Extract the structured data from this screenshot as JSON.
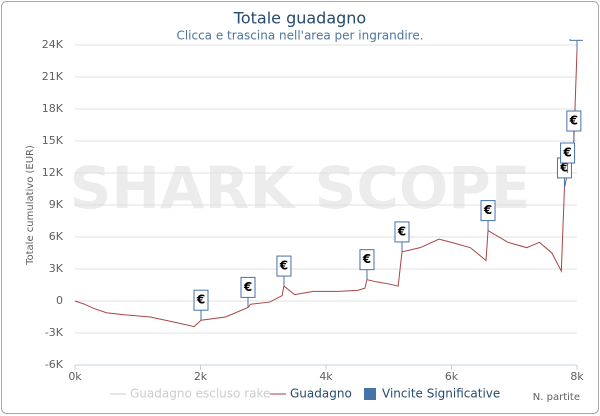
{
  "chart_data": {
    "type": "line",
    "title": "Totale guadagno",
    "subtitle": "Clicca e trascina nell'area per ingrandire.",
    "watermark": "SHARK SCOPE",
    "y_label": "Totale cumulativo (EUR)",
    "x_label": "N. partite",
    "xlim": [
      0,
      8000
    ],
    "ylim": [
      -6000,
      24000
    ],
    "xticks": [
      {
        "value": 0,
        "label": "0k"
      },
      {
        "value": 2000,
        "label": "2k"
      },
      {
        "value": 4000,
        "label": "4k"
      },
      {
        "value": 6000,
        "label": "6k"
      },
      {
        "value": 8000,
        "label": "8k"
      }
    ],
    "yticks": [
      {
        "value": -6000,
        "label": "-6K"
      },
      {
        "value": -3000,
        "label": "-3K"
      },
      0,
      {
        "value": 3000,
        "label": "3K"
      },
      {
        "value": 6000,
        "label": "6K"
      },
      {
        "value": 9000,
        "label": "9K"
      },
      {
        "value": 12000,
        "label": "12K"
      },
      {
        "value": 15000,
        "label": "15K"
      },
      {
        "value": 18000,
        "label": "18K"
      },
      {
        "value": 21000,
        "label": "21K"
      },
      {
        "value": 24000,
        "label": "24K"
      }
    ],
    "grid": true,
    "series": [
      {
        "name": "Guadagno escluso rake",
        "color": "#cccccc",
        "hidden": true
      },
      {
        "name": "Guadagno",
        "color": "#a84545",
        "x": [
          0,
          150,
          300,
          500,
          800,
          1200,
          1600,
          1900,
          2008,
          2400,
          2757,
          2800,
          3100,
          3300,
          3330,
          3500,
          3800,
          4200,
          4500,
          4620,
          4653,
          4800,
          5000,
          5150,
          5211,
          5500,
          5800,
          6000,
          6300,
          6550,
          6582,
          6900,
          7200,
          7400,
          7600,
          7750,
          7800,
          7850,
          7900,
          7950,
          8000
        ],
        "values": [
          0,
          -300,
          -700,
          -1100,
          -1300,
          -1500,
          -2000,
          -2400,
          -1800,
          -1500,
          -600,
          -300,
          -100,
          500,
          1400,
          600,
          900,
          900,
          1000,
          1200,
          2000,
          1800,
          1600,
          1400,
          4600,
          5000,
          5800,
          5500,
          5000,
          3800,
          6600,
          5500,
          5000,
          5500,
          4500,
          2800,
          10600,
          12000,
          13000,
          15000,
          23500
        ]
      },
      {
        "name": "Vincite Significative",
        "type": "flags",
        "color": "#4572a7",
        "flag_text": "€",
        "x": [
          2008,
          2757,
          3330,
          4653,
          5211,
          6582,
          7800,
          7850,
          7950,
          8000
        ],
        "values": [
          -1800,
          -600,
          1400,
          2000,
          4600,
          6600,
          10600,
          12000,
          15000,
          23500
        ]
      }
    ]
  }
}
